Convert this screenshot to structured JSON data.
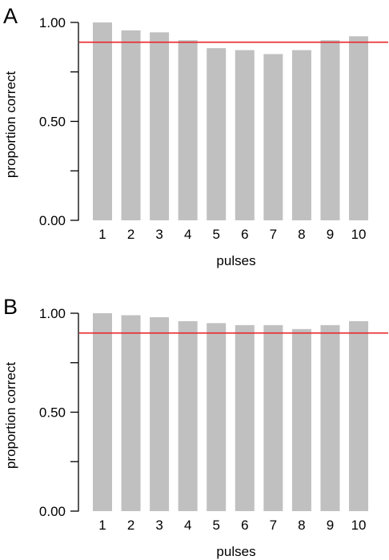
{
  "colors": {
    "bar": "#c0c0c0",
    "reference_line": "#e8262a",
    "axis": "#000000"
  },
  "chart_data": [
    {
      "type": "bar",
      "panel_label": "A",
      "categories": [
        "1",
        "2",
        "3",
        "4",
        "5",
        "6",
        "7",
        "8",
        "9",
        "10"
      ],
      "values": [
        1.0,
        0.96,
        0.95,
        0.91,
        0.87,
        0.86,
        0.84,
        0.86,
        0.91,
        0.93
      ],
      "reference_line": 0.9,
      "xlabel": "pulses",
      "ylabel": "proportion correct",
      "ylim": [
        0,
        1
      ],
      "yticks": [
        0,
        0.25,
        0.5,
        0.75,
        1.0
      ],
      "ytick_labels": [
        "0.00",
        "",
        "0.50",
        "",
        "1.00"
      ],
      "grid": false
    },
    {
      "type": "bar",
      "panel_label": "B",
      "categories": [
        "1",
        "2",
        "3",
        "4",
        "5",
        "6",
        "7",
        "8",
        "9",
        "10"
      ],
      "values": [
        1.0,
        0.99,
        0.98,
        0.96,
        0.95,
        0.94,
        0.94,
        0.92,
        0.94,
        0.96
      ],
      "reference_line": 0.9,
      "xlabel": "pulses",
      "ylabel": "proportion correct",
      "ylim": [
        0,
        1
      ],
      "yticks": [
        0,
        0.25,
        0.5,
        0.75,
        1.0
      ],
      "ytick_labels": [
        "0.00",
        "",
        "0.50",
        "",
        "1.00"
      ],
      "grid": false
    }
  ]
}
